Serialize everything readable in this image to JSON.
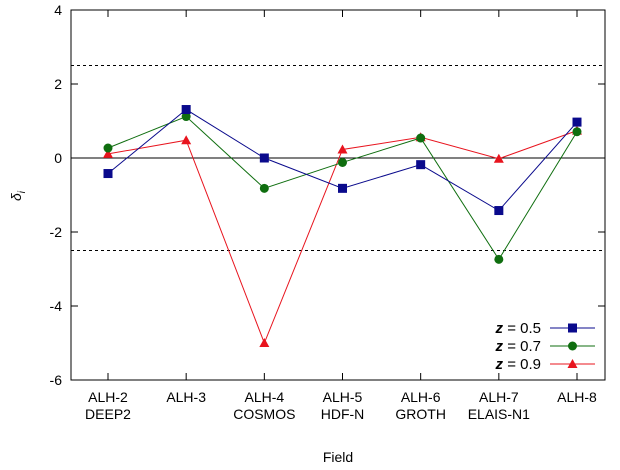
{
  "chart_data": {
    "type": "line",
    "xlabel": "Field",
    "ylabel": "δ",
    "ylabel_subscript": "i",
    "ylim": [
      -6,
      4
    ],
    "yticks": [
      -6,
      -4,
      -2,
      0,
      2,
      4
    ],
    "ytick_labels": [
      "-6",
      "-4",
      "-2",
      "0",
      "2",
      "4"
    ],
    "reference_lines": [
      2.5,
      -2.5
    ],
    "zero_line": 0,
    "grid": false,
    "legend_position": "bottom-right",
    "categories": [
      {
        "line1": "ALH-2",
        "line2": "DEEP2"
      },
      {
        "line1": "ALH-3",
        "line2": ""
      },
      {
        "line1": "ALH-4",
        "line2": "COSMOS"
      },
      {
        "line1": "ALH-5",
        "line2": "HDF-N"
      },
      {
        "line1": "ALH-6",
        "line2": "GROTH"
      },
      {
        "line1": "ALH-7",
        "line2": "ELAIS-N1"
      },
      {
        "line1": "ALH-8",
        "line2": ""
      }
    ],
    "series": [
      {
        "name": "z = 0.5",
        "z_symbol": "z",
        "z_value": "= 0.5",
        "color": "#0a0a8c",
        "marker": "square",
        "values": [
          -0.42,
          1.31,
          0.0,
          -0.82,
          -0.18,
          -1.42,
          0.97
        ]
      },
      {
        "name": "z = 0.7",
        "z_symbol": "z",
        "z_value": "= 0.7",
        "color": "#0f6e0f",
        "marker": "circle",
        "values": [
          0.27,
          1.12,
          -0.82,
          -0.12,
          0.54,
          -2.74,
          0.71
        ]
      },
      {
        "name": "z = 0.9",
        "z_symbol": "z",
        "z_value": "= 0.9",
        "color": "#e8141e",
        "marker": "triangle",
        "values": [
          0.11,
          0.48,
          -5.0,
          0.23,
          0.56,
          -0.02,
          0.74
        ]
      }
    ]
  }
}
